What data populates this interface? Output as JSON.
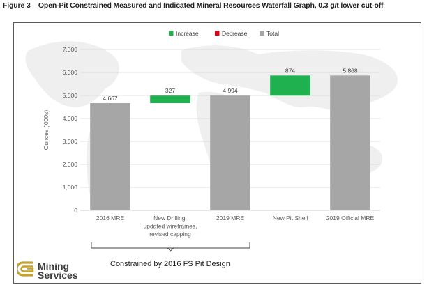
{
  "figure_title": "Figure 3 – Open-Pit Constrained Measured and Indicated Mineral Resources Waterfall Graph, 0.3 g/t lower cut-off",
  "bracket_caption": "Constrained by 2016 FS Pit Design",
  "logo": {
    "line1": "Mining",
    "line2": "Services"
  },
  "colors": {
    "increase": "#1fb04f",
    "decrease": "#e2001a",
    "total": "#a6a6a6",
    "logo_gold": "#c8a02a",
    "grid": "#d9d9d9"
  },
  "chart_data": {
    "type": "bar",
    "subtype": "waterfall",
    "title": "",
    "xlabel": "",
    "ylabel": "Ounces ('000s)",
    "ylim": [
      0,
      7000
    ],
    "yticks": [
      0,
      1000,
      2000,
      3000,
      4000,
      5000,
      6000,
      7000
    ],
    "ytick_labels": [
      "0",
      "1,000",
      "2,000",
      "3,000",
      "4,000",
      "5,000",
      "6,000",
      "7,000"
    ],
    "grid": true,
    "legend": [
      "Increase",
      "Decrease",
      "Total"
    ],
    "legend_position": "top-center",
    "categories": [
      [
        "2016 MRE"
      ],
      [
        "New Drilling,",
        "updated wireframes,",
        "revised capping"
      ],
      [
        "2019 MRE"
      ],
      [
        "New Pit Shell"
      ],
      [
        "2019 Official MRE"
      ]
    ],
    "bars": [
      {
        "kind": "total",
        "start": 0,
        "end": 4667,
        "label": "4,667"
      },
      {
        "kind": "increase",
        "start": 4667,
        "end": 4994,
        "label": "327"
      },
      {
        "kind": "total",
        "start": 0,
        "end": 4994,
        "label": "4,994"
      },
      {
        "kind": "increase",
        "start": 4994,
        "end": 5868,
        "label": "874"
      },
      {
        "kind": "total",
        "start": 0,
        "end": 5868,
        "label": "5,868"
      }
    ]
  }
}
